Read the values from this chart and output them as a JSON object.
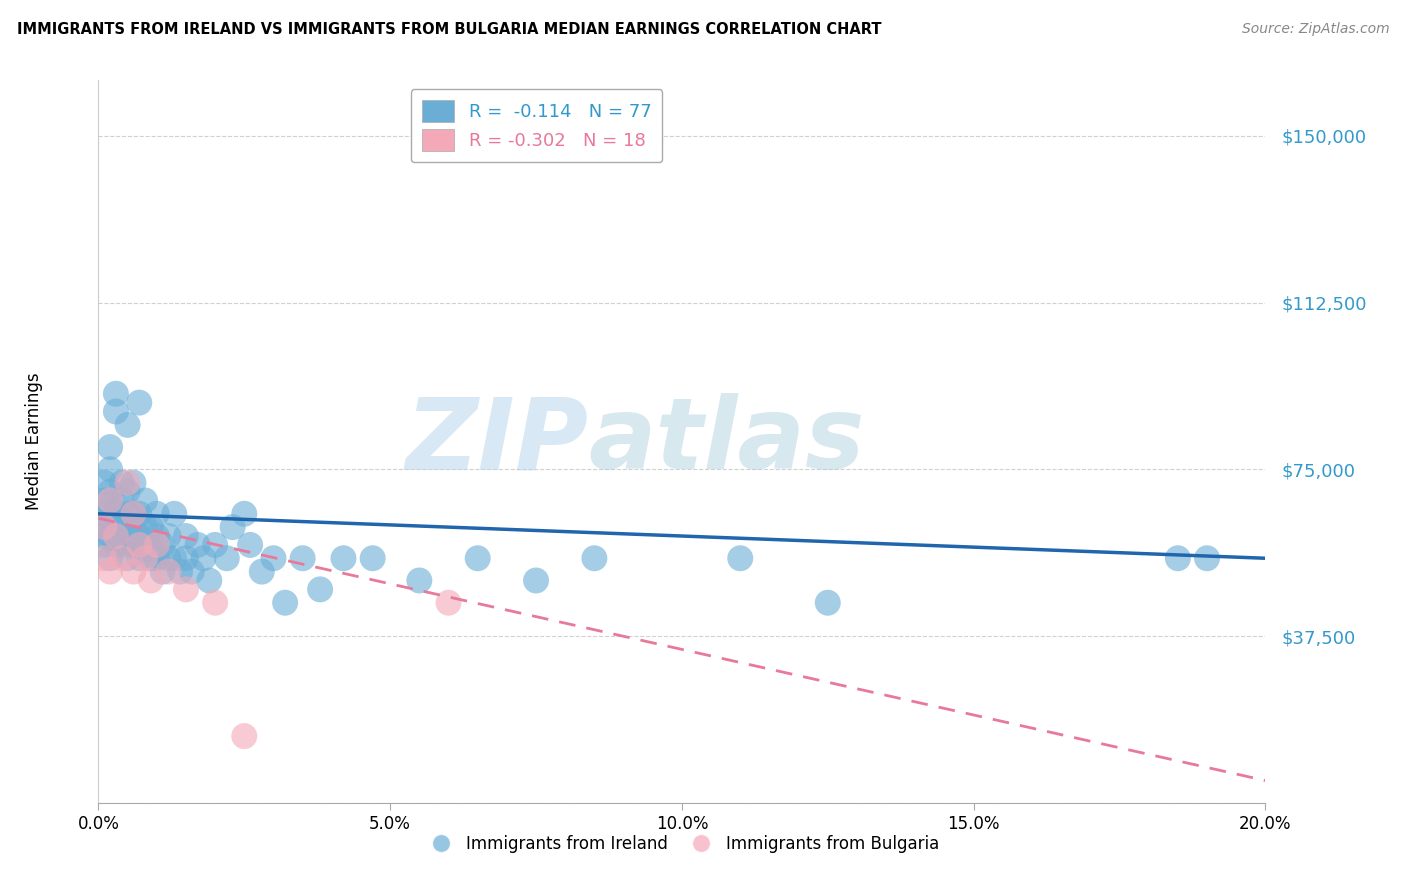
{
  "title": "IMMIGRANTS FROM IRELAND VS IMMIGRANTS FROM BULGARIA MEDIAN EARNINGS CORRELATION CHART",
  "source": "Source: ZipAtlas.com",
  "xlabel": "",
  "ylabel": "Median Earnings",
  "xlim": [
    0.0,
    0.2
  ],
  "ylim": [
    0,
    162500
  ],
  "yticks": [
    0,
    37500,
    75000,
    112500,
    150000
  ],
  "ytick_labels": [
    "",
    "$37,500",
    "$75,000",
    "$112,500",
    "$150,000"
  ],
  "xticks": [
    0.0,
    0.05,
    0.1,
    0.15,
    0.2
  ],
  "xtick_labels": [
    "0.0%",
    "5.0%",
    "10.0%",
    "15.0%",
    "20.0%"
  ],
  "ireland_R": -0.114,
  "ireland_N": 77,
  "bulgaria_R": -0.302,
  "bulgaria_N": 18,
  "ireland_color": "#6aaed6",
  "bulgaria_color": "#f4a9b8",
  "ireland_line_color": "#2166ac",
  "bulgaria_line_color": "#e8799a",
  "background_color": "#ffffff",
  "watermark_zip": "ZIP",
  "watermark_atlas": "atlas",
  "ireland_x": [
    0.001,
    0.001,
    0.001,
    0.001,
    0.001,
    0.001,
    0.002,
    0.002,
    0.002,
    0.002,
    0.002,
    0.002,
    0.002,
    0.003,
    0.003,
    0.003,
    0.003,
    0.003,
    0.004,
    0.004,
    0.004,
    0.004,
    0.005,
    0.005,
    0.005,
    0.005,
    0.005,
    0.006,
    0.006,
    0.006,
    0.006,
    0.007,
    0.007,
    0.007,
    0.007,
    0.008,
    0.008,
    0.008,
    0.009,
    0.009,
    0.009,
    0.01,
    0.01,
    0.01,
    0.011,
    0.011,
    0.012,
    0.012,
    0.013,
    0.013,
    0.014,
    0.015,
    0.015,
    0.016,
    0.017,
    0.018,
    0.019,
    0.02,
    0.022,
    0.023,
    0.025,
    0.026,
    0.028,
    0.03,
    0.032,
    0.035,
    0.038,
    0.042,
    0.047,
    0.055,
    0.065,
    0.075,
    0.085,
    0.11,
    0.125,
    0.185,
    0.19
  ],
  "ireland_y": [
    68000,
    65000,
    62000,
    72000,
    60000,
    58000,
    70000,
    67000,
    64000,
    75000,
    60000,
    55000,
    80000,
    65000,
    62000,
    58000,
    92000,
    88000,
    63000,
    68000,
    72000,
    58000,
    60000,
    65000,
    85000,
    55000,
    70000,
    62000,
    58000,
    72000,
    65000,
    60000,
    65000,
    55000,
    90000,
    58000,
    62000,
    68000,
    57000,
    62000,
    55000,
    60000,
    55000,
    65000,
    58000,
    52000,
    55000,
    60000,
    55000,
    65000,
    52000,
    55000,
    60000,
    52000,
    58000,
    55000,
    50000,
    58000,
    55000,
    62000,
    65000,
    58000,
    52000,
    55000,
    45000,
    55000,
    48000,
    55000,
    55000,
    50000,
    55000,
    50000,
    55000,
    55000,
    45000,
    55000,
    55000
  ],
  "bulgaria_x": [
    0.001,
    0.001,
    0.002,
    0.002,
    0.003,
    0.004,
    0.005,
    0.006,
    0.006,
    0.007,
    0.008,
    0.009,
    0.01,
    0.012,
    0.015,
    0.02,
    0.025,
    0.06
  ],
  "bulgaria_y": [
    62000,
    55000,
    68000,
    52000,
    60000,
    55000,
    72000,
    65000,
    52000,
    58000,
    55000,
    50000,
    58000,
    52000,
    48000,
    45000,
    15000,
    45000
  ],
  "ireland_line_x": [
    0.0,
    0.2
  ],
  "ireland_line_y": [
    65000,
    55000
  ],
  "bulgaria_line_x": [
    0.0,
    0.2
  ],
  "bulgaria_line_y": [
    64000,
    5000
  ]
}
